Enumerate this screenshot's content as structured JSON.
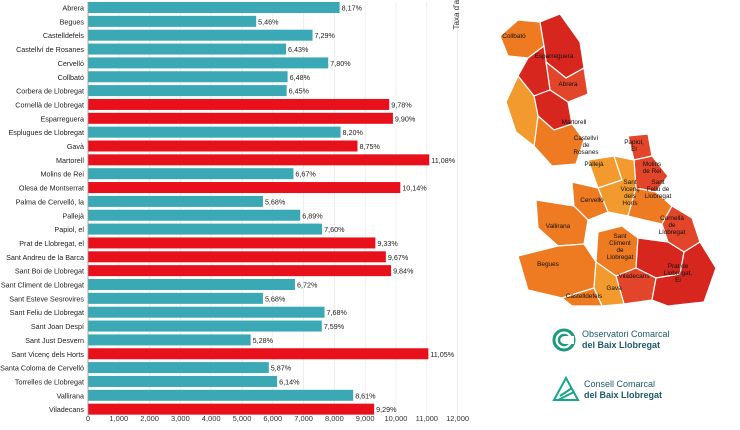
{
  "chart_data": {
    "type": "bar",
    "orientation": "horizontal",
    "ylabel": "Taxa d'atur",
    "xlim": [
      0,
      12000
    ],
    "xticks": [
      "0",
      "1,000",
      "2,000",
      "3,000",
      "4,000",
      "5,000",
      "6,000",
      "7,000",
      "8,000",
      "9,000",
      "10,000",
      "11,000",
      "12,000"
    ],
    "colors": {
      "teal": "#3aa8b5",
      "red": "#e8101a"
    },
    "bars": [
      {
        "label": "Abrera",
        "value": 8.17,
        "text": "8,17%",
        "color": "teal"
      },
      {
        "label": "Begues",
        "value": 5.46,
        "text": "5,46%",
        "color": "teal"
      },
      {
        "label": "Castelldefels",
        "value": 7.29,
        "text": "7,29%",
        "color": "teal"
      },
      {
        "label": "Castellví de Rosanes",
        "value": 6.43,
        "text": "6,43%",
        "color": "teal"
      },
      {
        "label": "Cervelló",
        "value": 7.8,
        "text": "7,80%",
        "color": "teal"
      },
      {
        "label": "Collbató",
        "value": 6.48,
        "text": "6,48%",
        "color": "teal"
      },
      {
        "label": "Corbera de Llobregat",
        "value": 6.45,
        "text": "6,45%",
        "color": "teal"
      },
      {
        "label": "Cornellà de Llobregat",
        "value": 9.78,
        "text": "9,78%",
        "color": "red"
      },
      {
        "label": "Esparreguera",
        "value": 9.9,
        "text": "9,90%",
        "color": "red"
      },
      {
        "label": "Esplugues de Llobregat",
        "value": 8.2,
        "text": "8,20%",
        "color": "teal"
      },
      {
        "label": "Gavà",
        "value": 8.75,
        "text": "8,75%",
        "color": "red"
      },
      {
        "label": "Martorell",
        "value": 11.08,
        "text": "11,08%",
        "color": "red"
      },
      {
        "label": "Molins de Rei",
        "value": 6.67,
        "text": "6,67%",
        "color": "teal"
      },
      {
        "label": "Olesa de Montserrat",
        "value": 10.14,
        "text": "10,14%",
        "color": "red"
      },
      {
        "label": "Palma de Cervelló, la",
        "value": 5.68,
        "text": "5,68%",
        "color": "teal"
      },
      {
        "label": "Pallejà",
        "value": 6.89,
        "text": "6,89%",
        "color": "teal"
      },
      {
        "label": "Papiol, el",
        "value": 7.6,
        "text": "7,60%",
        "color": "teal"
      },
      {
        "label": "Prat de Llobregat, el",
        "value": 9.33,
        "text": "9,33%",
        "color": "red"
      },
      {
        "label": "Sant Andreu de la Barca",
        "value": 9.67,
        "text": "9,67%",
        "color": "red"
      },
      {
        "label": "Sant Boi de Llobregat",
        "value": 9.84,
        "text": "9,84%",
        "color": "red"
      },
      {
        "label": "Sant Climent de Llobregat",
        "value": 6.72,
        "text": "6,72%",
        "color": "teal"
      },
      {
        "label": "Sant Esteve Sesrovires",
        "value": 5.68,
        "text": "5,68%",
        "color": "teal"
      },
      {
        "label": "Sant Feliu de Llobregat",
        "value": 7.68,
        "text": "7,68%",
        "color": "teal"
      },
      {
        "label": "Sant Joan Despí",
        "value": 7.59,
        "text": "7,59%",
        "color": "teal"
      },
      {
        "label": "Sant Just Desvern",
        "value": 5.28,
        "text": "5,28%",
        "color": "teal"
      },
      {
        "label": "Sant Vicenç dels Horts",
        "value": 11.05,
        "text": "11,05%",
        "color": "red"
      },
      {
        "label": "Santa Coloma de Cervelló",
        "value": 5.87,
        "text": "5,87%",
        "color": "teal"
      },
      {
        "label": "Torrelles de Llobregat",
        "value": 6.14,
        "text": "6,14%",
        "color": "teal"
      },
      {
        "label": "Vallirana",
        "value": 8.61,
        "text": "8,61%",
        "color": "teal"
      },
      {
        "label": "Viladecans",
        "value": 9.29,
        "text": "9,29%",
        "color": "red"
      }
    ]
  },
  "map": {
    "colors": {
      "dark_red": "#d7261e",
      "red": "#e3452a",
      "orange": "#ee7a22",
      "light_orange": "#f29a2e"
    },
    "labels": [
      {
        "lines": [
          "Collbató"
        ]
      },
      {
        "lines": [
          "Esparreguera"
        ]
      },
      {
        "lines": [
          "Abrera"
        ]
      },
      {
        "lines": [
          "Martorell"
        ]
      },
      {
        "lines": [
          "Castellví",
          "de",
          "Rosanes"
        ]
      },
      {
        "lines": [
          "Papiol,",
          "El"
        ]
      },
      {
        "lines": [
          "Pallejà"
        ]
      },
      {
        "lines": [
          "Molins",
          "de Rei"
        ]
      },
      {
        "lines": [
          "Sant",
          "Vicenç",
          "dels",
          "Horts"
        ]
      },
      {
        "lines": [
          "Sant",
          "Feliu de",
          "Llobregat"
        ]
      },
      {
        "lines": [
          "Cervelló"
        ]
      },
      {
        "lines": [
          "Vallirana"
        ]
      },
      {
        "lines": [
          "Cornellà",
          "de",
          "Llobregat"
        ]
      },
      {
        "lines": [
          "Sant",
          "Climent",
          "de",
          "Llobregat"
        ]
      },
      {
        "lines": [
          "Begues"
        ]
      },
      {
        "lines": [
          "Viladecans"
        ]
      },
      {
        "lines": [
          "Gavà"
        ]
      },
      {
        "lines": [
          "Prat de",
          "Llobregat,",
          "El"
        ]
      },
      {
        "lines": [
          "Castelldefels"
        ]
      }
    ]
  },
  "logos": {
    "observatori": {
      "line1": "Observatori Comarcal",
      "line2": "del Baix Llobregat"
    },
    "consell": {
      "line1": "Consell Comarcal",
      "line2": "del Baix Llobregat"
    }
  }
}
